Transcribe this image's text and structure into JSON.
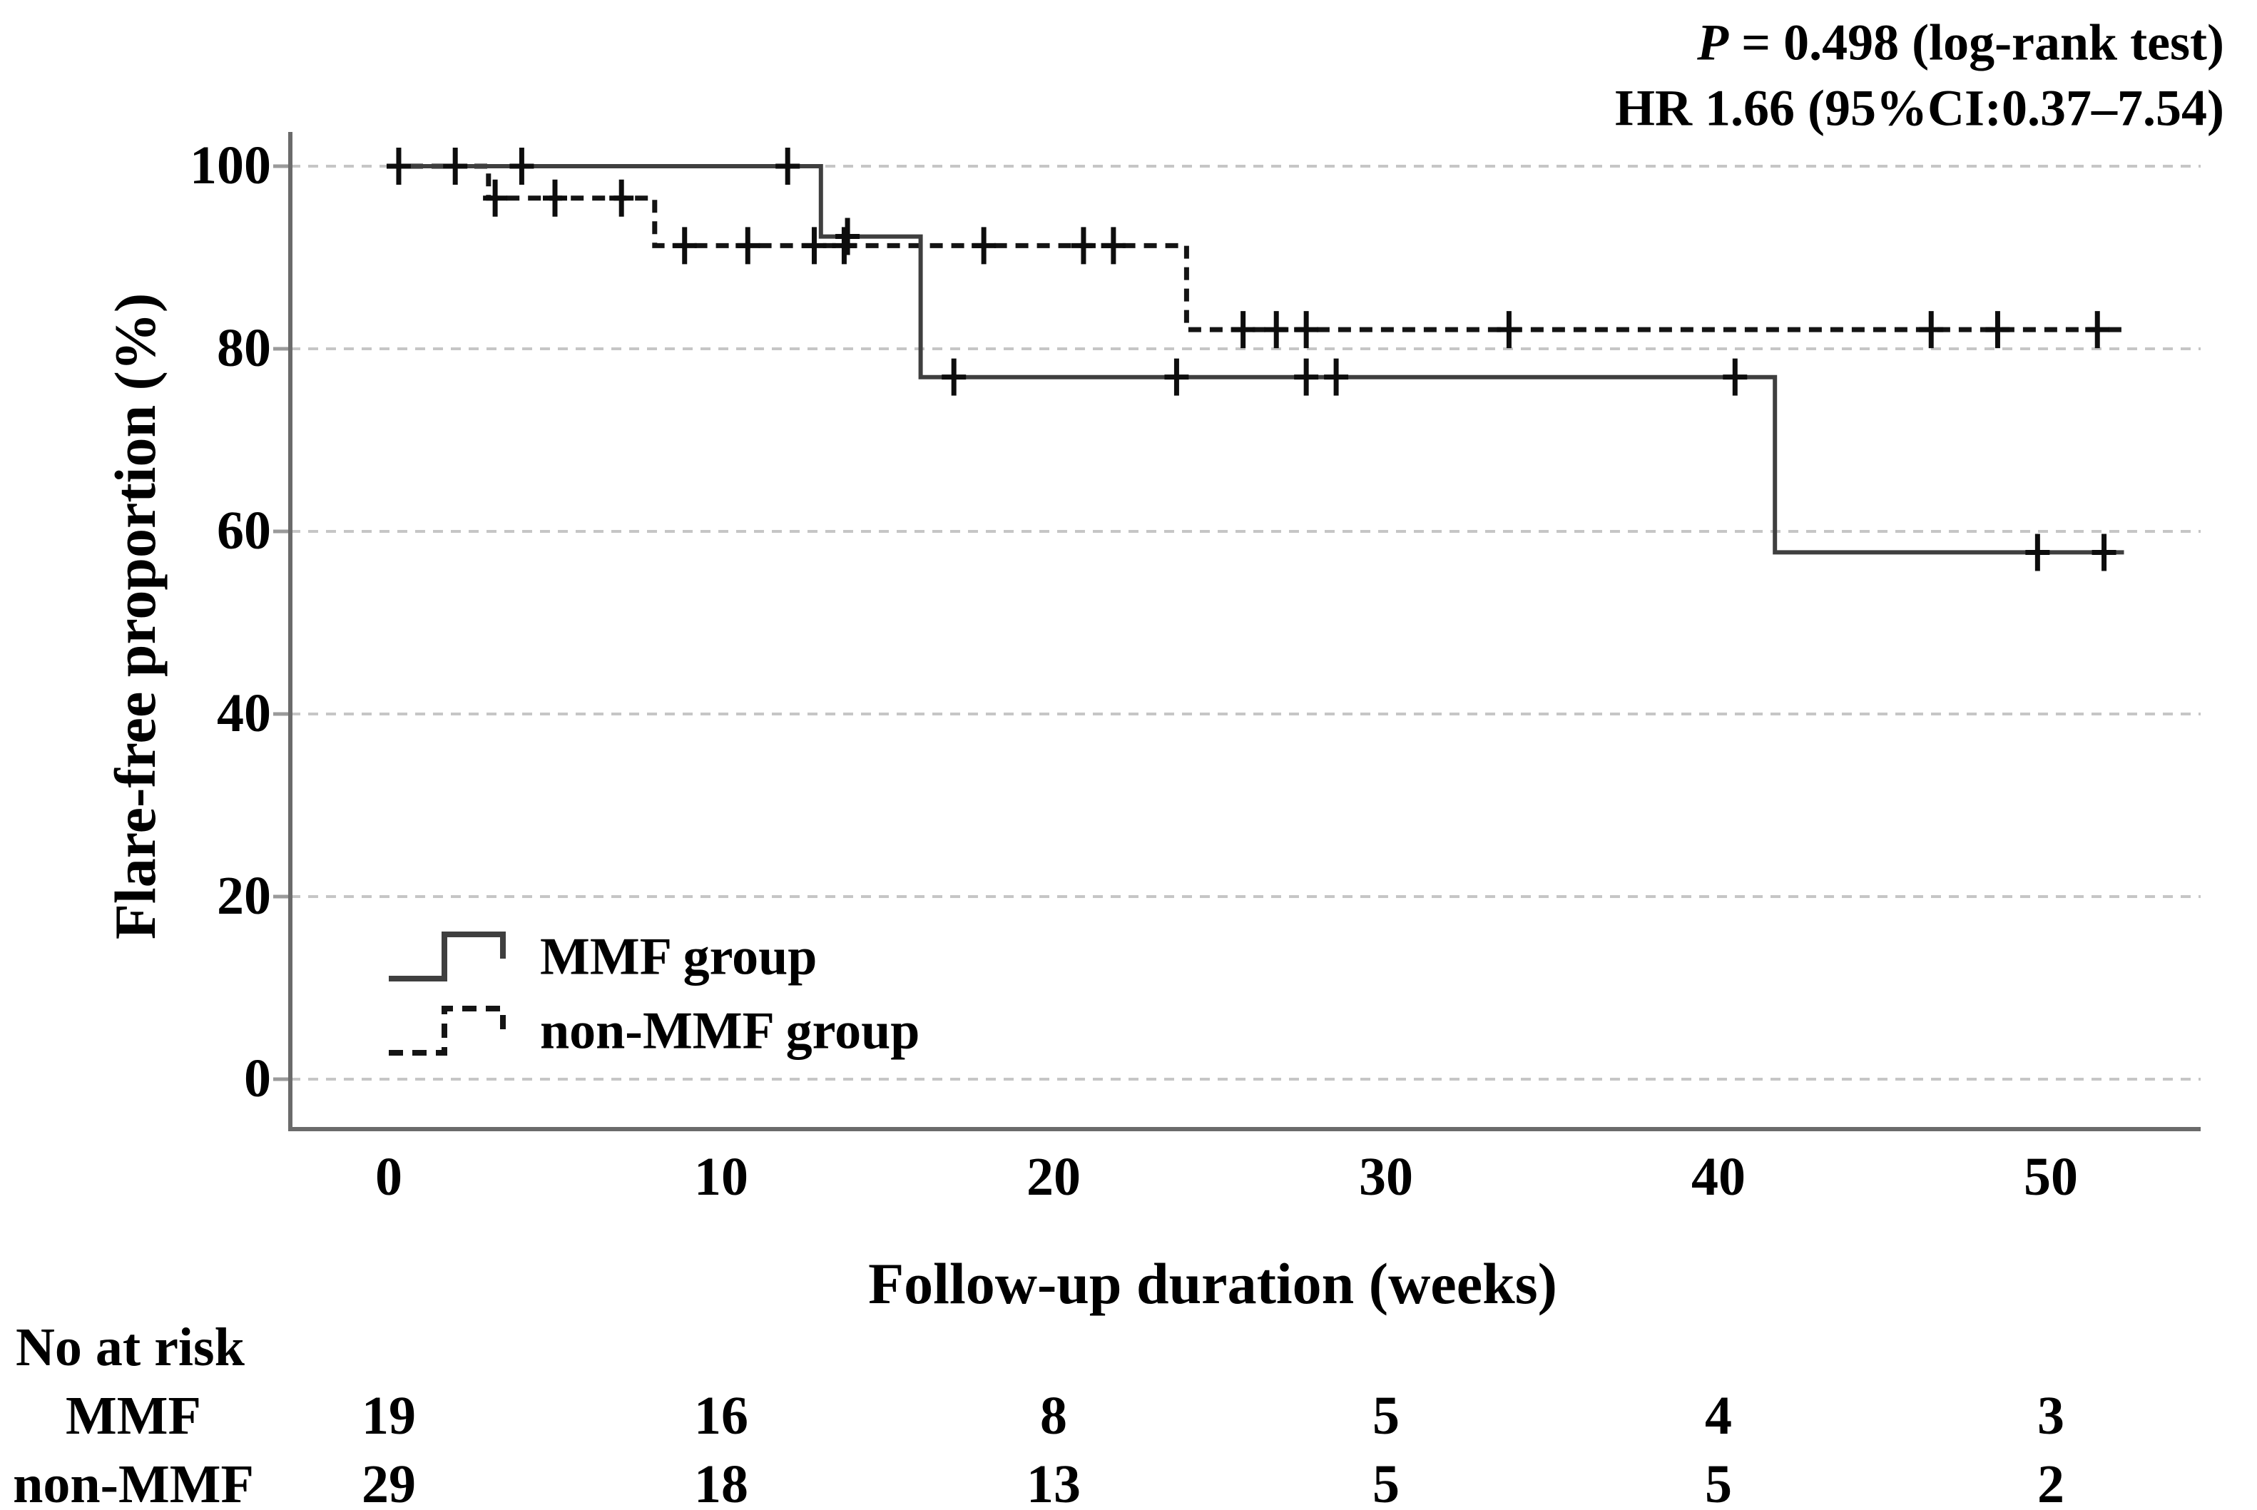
{
  "figure": {
    "stats": {
      "p_symbol": "P",
      "p_rest": " = 0.498 (log-rank test)",
      "hr_line": "HR 1.66 (95%CI:0.37–7.54)"
    },
    "legend": [
      {
        "label": "MMF group",
        "style": "solid"
      },
      {
        "label": "non-MMF group",
        "style": "dashed"
      }
    ]
  },
  "chart_data": {
    "type": "line",
    "subtype": "kaplan-meier-step-function",
    "title": "",
    "xlabel": "Follow-up duration (weeks)",
    "ylabel": "Flare-free proportion (%)",
    "x_ticks": [
      0,
      10,
      20,
      30,
      40,
      50
    ],
    "y_ticks": [
      0,
      20,
      40,
      60,
      80,
      100
    ],
    "xlim": [
      0,
      54
    ],
    "ylim": [
      0,
      100
    ],
    "grid": "horizontal dashed gray lines at each y tick",
    "legend_position": "lower-left inside plot",
    "annotations": [
      "P = 0.498 (log-rank test)",
      "HR 1.66 (95%CI:0.37–7.54)"
    ],
    "series": [
      {
        "name": "MMF group",
        "style": "solid",
        "color": "#3f3f3f",
        "steps": [
          [
            0,
            100
          ],
          [
            13,
            100
          ],
          [
            13,
            92.3
          ],
          [
            16,
            92.3
          ],
          [
            16,
            76.9
          ],
          [
            41.7,
            76.9
          ],
          [
            41.7,
            57.7
          ],
          [
            52.2,
            57.7
          ]
        ],
        "censor_marks": [
          [
            0.3,
            100
          ],
          [
            2,
            100
          ],
          [
            4,
            100
          ],
          [
            12,
            100
          ],
          [
            13.8,
            92.3
          ],
          [
            17,
            76.9
          ],
          [
            23.7,
            76.9
          ],
          [
            27.6,
            76.9
          ],
          [
            28.5,
            76.9
          ],
          [
            40.5,
            76.9
          ],
          [
            49.6,
            57.7
          ],
          [
            51.6,
            57.7
          ]
        ]
      },
      {
        "name": "non-MMF group",
        "style": "dashed",
        "color": "#141414",
        "steps": [
          [
            0,
            100
          ],
          [
            3,
            100
          ],
          [
            3,
            96.5
          ],
          [
            8,
            96.5
          ],
          [
            8,
            91.3
          ],
          [
            24,
            91.3
          ],
          [
            24,
            82.1
          ],
          [
            52.2,
            82.1
          ]
        ],
        "censor_marks": [
          [
            3.2,
            96.5
          ],
          [
            5,
            96.5
          ],
          [
            7,
            96.5
          ],
          [
            8.9,
            91.3
          ],
          [
            10.8,
            91.3
          ],
          [
            12.8,
            91.3
          ],
          [
            13.7,
            91.3
          ],
          [
            17.9,
            91.3
          ],
          [
            20.9,
            91.3
          ],
          [
            21.8,
            91.3
          ],
          [
            25.7,
            82.1
          ],
          [
            26.7,
            82.1
          ],
          [
            27.6,
            82.1
          ],
          [
            33.7,
            82.1
          ],
          [
            46.4,
            82.1
          ],
          [
            48.4,
            82.1
          ],
          [
            51.4,
            82.1
          ]
        ]
      }
    ]
  },
  "risk_table": {
    "header": "No at risk",
    "time_points": [
      0,
      10,
      20,
      30,
      40,
      50
    ],
    "rows": [
      {
        "label": "MMF",
        "values": [
          19,
          16,
          8,
          5,
          4,
          3
        ]
      },
      {
        "label": "non-MMF",
        "values": [
          29,
          18,
          13,
          5,
          5,
          2
        ]
      }
    ]
  },
  "colors": {
    "axis": "#6b6b6b",
    "gridline": "#c6c6c6",
    "text": "#000000",
    "censor": "#0d0d0d"
  }
}
